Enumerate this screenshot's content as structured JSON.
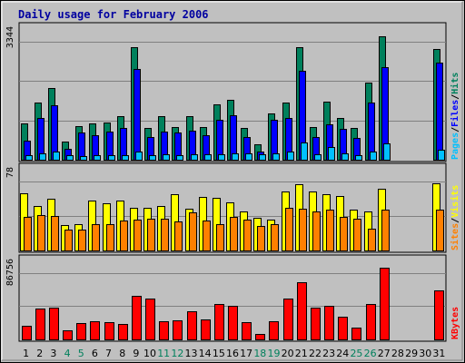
{
  "chart_data": {
    "type": "bar",
    "title": "Daily usage for February 2006",
    "x": [
      "1",
      "2",
      "3",
      "4",
      "5",
      "6",
      "7",
      "8",
      "9",
      "10",
      "11",
      "12",
      "13",
      "14",
      "15",
      "16",
      "17",
      "18",
      "19",
      "20",
      "21",
      "22",
      "23",
      "24",
      "25",
      "26",
      "27",
      "28",
      "29",
      "30",
      "31"
    ],
    "weekend_days": [
      "4",
      "5",
      "11",
      "12",
      "18",
      "19",
      "25",
      "26"
    ],
    "panels": [
      {
        "id": "hits",
        "ymax_label": "3344",
        "ymax": 3344,
        "right_label_parts": [
          "Pages",
          "/",
          "Files",
          "/",
          "Hits"
        ],
        "right_label_colors": [
          "#00c0ff",
          "#000000",
          "#0000ff",
          "#000000",
          "#00805c"
        ],
        "series": [
          {
            "name": "Hits",
            "color": "#00805c",
            "values": [
              970,
              1530,
              1930,
              480,
              910,
              980,
              1000,
              1160,
              3030,
              850,
              1180,
              880,
              1160,
              890,
              1500,
              1600,
              850,
              410,
              1240,
              1540,
              3030,
              870,
              1550,
              1120,
              860,
              2070,
              3320,
              0,
              0,
              0,
              2990
            ]
          },
          {
            "name": "Files",
            "color": "#0000ff",
            "values": [
              510,
              1120,
              1460,
              300,
              740,
              650,
              760,
              860,
              2440,
              600,
              760,
              740,
              780,
              650,
              1070,
              1200,
              620,
              230,
              1070,
              1130,
              2380,
              600,
              960,
              820,
              580,
              1540,
              2500,
              0,
              0,
              0,
              2600
            ]
          },
          {
            "name": "Pages",
            "color": "#00c0ff",
            "values": [
              120,
              170,
              210,
              120,
              100,
              110,
              130,
              130,
              220,
              130,
              140,
              120,
              140,
              150,
              140,
              160,
              160,
              150,
              170,
              230,
              470,
              150,
              340,
              160,
              120,
              230,
              440,
              0,
              0,
              0,
              260
            ]
          }
        ]
      },
      {
        "id": "visits",
        "ymax_label": "78",
        "ymax": 78,
        "right_label_parts": [
          "Sites",
          "/",
          "Visits"
        ],
        "right_label_colors": [
          "#ff8000",
          "#000000",
          "#ffff00"
        ],
        "series": [
          {
            "name": "Visits",
            "color": "#ffff00",
            "values": [
              60,
              47,
              54,
              27,
              28,
              52,
              49,
              52,
              45,
              45,
              47,
              59,
              44,
              56,
              55,
              50,
              41,
              34,
              32,
              62,
              69,
              62,
              59,
              57,
              43,
              41,
              65,
              0,
              0,
              0,
              70
            ]
          },
          {
            "name": "Sites",
            "color": "#ff8000",
            "values": [
              35,
              37,
              36,
              22,
              22,
              28,
              28,
              31,
              32,
              33,
              33,
              30,
              40,
              31,
              28,
              35,
              32,
              26,
              28,
              45,
              44,
              41,
              43,
              35,
              33,
              23,
              43,
              0,
              0,
              0,
              43
            ]
          }
        ]
      },
      {
        "id": "kbytes",
        "ymax_label": "86756",
        "ymax": 86756,
        "right_label_parts": [
          "KBytes"
        ],
        "right_label_colors": [
          "#ff0000"
        ],
        "series": [
          {
            "name": "KBytes",
            "color": "#ff0000",
            "values": [
              16100,
              36900,
              38700,
              11500,
              20300,
              22100,
              21200,
              18400,
              52600,
              49100,
              21700,
              23500,
              34100,
              24200,
              42400,
              40100,
              21300,
              6800,
              22500,
              49000,
              69200,
              38500,
              40200,
              27300,
              14600,
              43300,
              86756,
              0,
              0,
              0,
              59600
            ]
          }
        ]
      }
    ]
  }
}
